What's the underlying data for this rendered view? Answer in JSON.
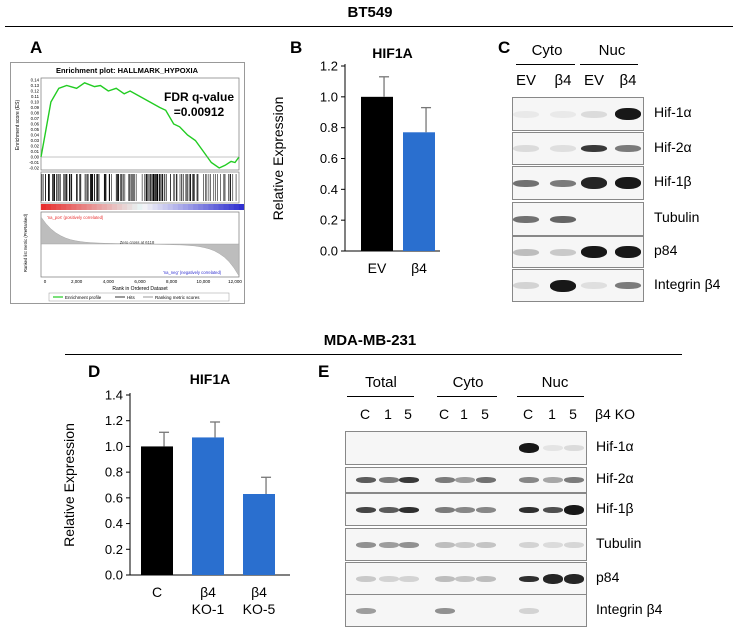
{
  "top_section": {
    "title": "BT549"
  },
  "bottom_section": {
    "title": "MDA-MB-231"
  },
  "panel_a": {
    "label": "A",
    "title": "Enrichment plot: HALLMARK_HYPOXIA",
    "ylabel": "Enrichment score (ES)",
    "yticks": [
      "0.14",
      "0.13",
      "0.12",
      "0.11",
      "0.10",
      "0.09",
      "0.08",
      "0.07",
      "0.06",
      "0.05",
      "0.04",
      "0.03",
      "0.02",
      "0.01",
      "0.00",
      "-0.01",
      "-0.02"
    ],
    "fdr_line1": "FDR q-value",
    "fdr_line2": "=0.00912",
    "pos_label": "'na_pos' (positively correlated)",
    "neg_label": "'na_neg' (negatively correlated)",
    "zero_cross": "Zero cross at 6118",
    "ranked_ylabel": "Ranked list metric (PreRanked)",
    "xticks": [
      "0",
      "2,000",
      "4,000",
      "6,000",
      "8,000",
      "10,000",
      "12,000"
    ],
    "xlabel": "Rank in Ordered Dataset",
    "legend": [
      "Enrichment profile",
      "Hits",
      "Ranking metric scores"
    ],
    "colors": {
      "profile": "#22cc22",
      "hits": "#000000",
      "pos": "#e83030",
      "neg": "#3030d0"
    }
  },
  "panel_b": {
    "label": "B",
    "chart_data": {
      "type": "bar",
      "title": "HIF1A",
      "ylabel": "Relative Expression",
      "categories": [
        "EV",
        "β4"
      ],
      "values": [
        1.0,
        0.77
      ],
      "errors": [
        0.13,
        0.16
      ],
      "colors": [
        "#000000",
        "#2a6fcf"
      ],
      "ylim": [
        0,
        1.2
      ],
      "yticks": [
        "0.0",
        "0.2",
        "0.4",
        "0.6",
        "0.8",
        "1.0",
        "1.2"
      ]
    }
  },
  "panel_c": {
    "label": "C",
    "groups": [
      "Cyto",
      "Nuc"
    ],
    "lanes": [
      "EV",
      "β4",
      "EV",
      "β4"
    ],
    "rows": [
      "Hif-1α",
      "Hif-2α",
      "Hif-1β",
      "Tubulin",
      "p84",
      "Integrin β4"
    ]
  },
  "panel_d": {
    "label": "D",
    "chart_data": {
      "type": "bar",
      "title": "HIF1A",
      "ylabel": "Relative Expression",
      "categories": [
        [
          "C"
        ],
        [
          "β4",
          "KO-1"
        ],
        [
          "β4",
          "KO-5"
        ]
      ],
      "values": [
        1.0,
        1.07,
        0.63
      ],
      "errors": [
        0.11,
        0.12,
        0.13
      ],
      "colors": [
        "#000000",
        "#2a6fcf",
        "#2a6fcf"
      ],
      "ylim": [
        0,
        1.4
      ],
      "yticks": [
        "0.0",
        "0.2",
        "0.4",
        "0.6",
        "0.8",
        "1.0",
        "1.2",
        "1.4"
      ]
    }
  },
  "panel_e": {
    "label": "E",
    "groups": [
      "Total",
      "Cyto",
      "Nuc"
    ],
    "lanes": [
      "C",
      "1",
      "5",
      "C",
      "1",
      "5",
      "C",
      "1",
      "5"
    ],
    "lane_caption": "β4 KO",
    "rows": [
      "Hif-1α",
      "Hif-2α",
      "Hif-1β",
      "Tubulin",
      "p84",
      "Integrin β4"
    ]
  }
}
